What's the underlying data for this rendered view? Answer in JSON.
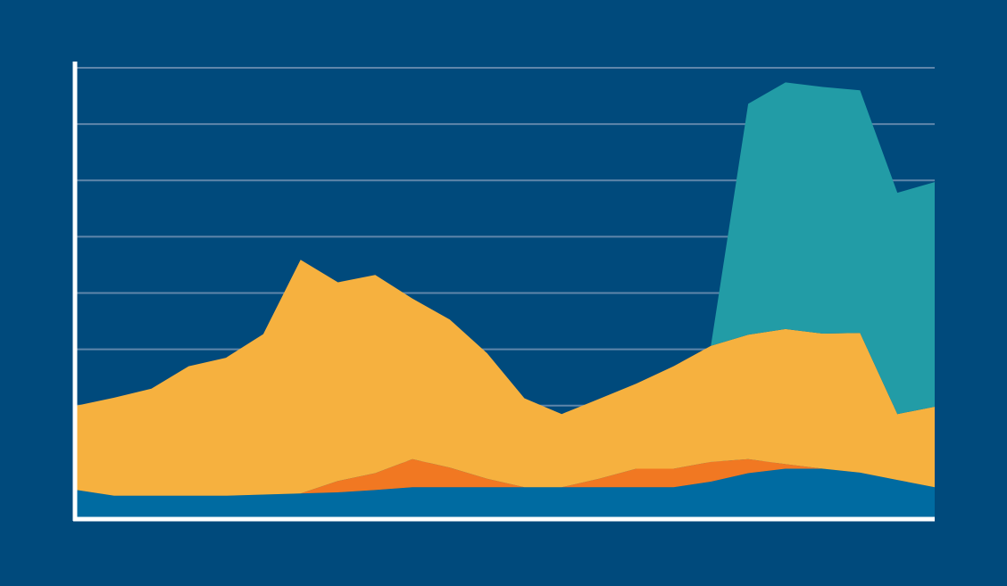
{
  "background_color": "#004a7c",
  "gridline_color": "#5f86aa",
  "axis_color": "#ffffff",
  "chart_data": {
    "type": "area",
    "stacked": true,
    "grid": true,
    "title": "",
    "xlabel": "",
    "ylabel": "",
    "ylim": [
      0,
      8
    ],
    "yticks": [
      0,
      1,
      2,
      3,
      4,
      5,
      6,
      7,
      8
    ],
    "x": [
      0,
      1,
      2,
      3,
      4,
      5,
      6,
      7,
      8,
      9,
      10,
      11,
      12,
      13,
      14,
      15,
      16,
      17,
      18,
      19,
      20,
      21,
      22,
      23
    ],
    "series": [
      {
        "color": "#006ba1",
        "values": [
          0.5,
          0.4,
          0.4,
          0.4,
          0.4,
          0.42,
          0.44,
          0.46,
          0.5,
          0.55,
          0.55,
          0.55,
          0.55,
          0.55,
          0.55,
          0.55,
          0.55,
          0.65,
          0.8,
          0.88,
          0.88,
          0.81,
          0.68,
          0.55
        ]
      },
      {
        "color": "#f17822",
        "values": [
          0,
          0,
          0,
          0,
          0,
          0,
          0,
          0.2,
          0.3,
          0.5,
          0.35,
          0.15,
          0,
          0,
          0.15,
          0.33,
          0.33,
          0.35,
          0.25,
          0.08,
          0,
          0,
          0,
          0
        ]
      },
      {
        "color": "#f6b13f",
        "values": [
          1.5,
          1.74,
          1.9,
          2.3,
          2.45,
          2.85,
          4.15,
          3.53,
          3.52,
          2.85,
          2.63,
          2.23,
          1.58,
          1.3,
          1.42,
          1.51,
          1.82,
          2.06,
          2.21,
          2.4,
          2.4,
          2.48,
          1.17,
          1.43
        ]
      },
      {
        "color": "#229ca6",
        "values": [
          0,
          0,
          0,
          0,
          0,
          0,
          0,
          0,
          0,
          0,
          0,
          0,
          0,
          0,
          0,
          0,
          0,
          0,
          4.1,
          4.38,
          4.38,
          4.31,
          3.93,
          3.99
        ]
      }
    ]
  }
}
